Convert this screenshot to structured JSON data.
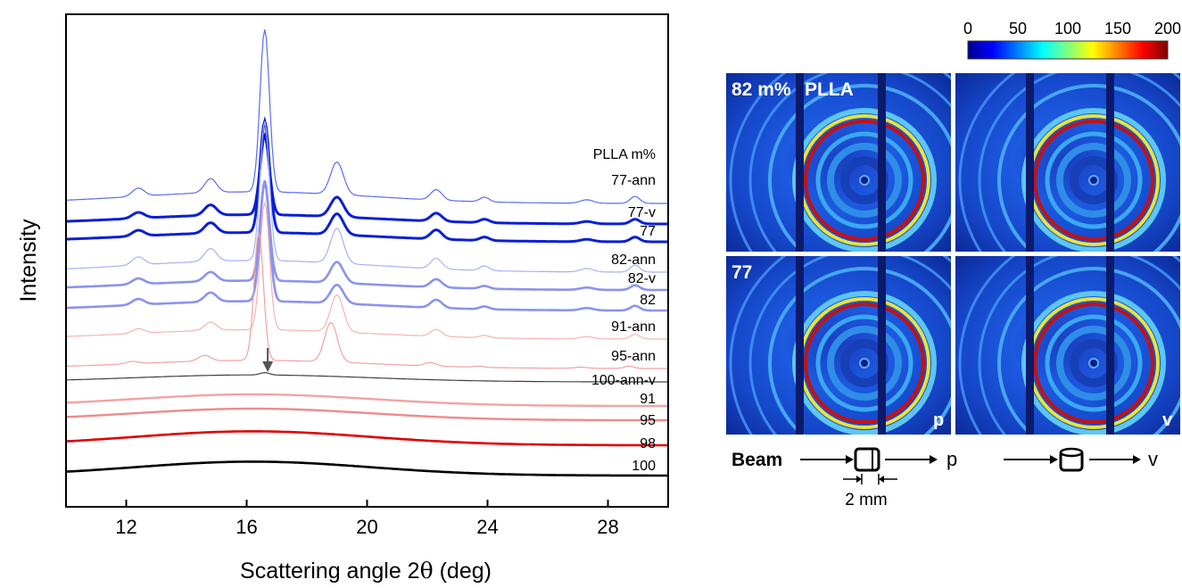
{
  "chart_data": [
    {
      "type": "line",
      "xlabel_prefix": "Scattering angle 2",
      "xlabel_theta": "θ",
      "xlabel_suffix": " (deg)",
      "ylabel": "Intensity",
      "xlim": [
        10,
        30
      ],
      "x_ticks": [
        12,
        16,
        20,
        24,
        28
      ],
      "legend_header": "PLLA m%",
      "grid": false,
      "arrow_at_x": 16.7,
      "peaks": [
        12.4,
        14.8,
        16.6,
        19.0,
        22.3,
        23.9,
        27.3,
        28.9
      ],
      "series": [
        {
          "name": "77-ann",
          "color": "#5a6cf2",
          "heights": [
            0.35,
            0.6,
            7.0,
            1.4,
            0.45,
            0.2,
            0.15,
            0.3
          ],
          "bump": 0.5
        },
        {
          "name": "77-v",
          "color": "#0a1fd6",
          "heights": [
            0.25,
            0.45,
            3.4,
            0.85,
            0.35,
            0.15,
            0.1,
            0.2
          ],
          "bump": 0.4
        },
        {
          "name": "77",
          "color": "#0a1fd6",
          "heights": [
            0.25,
            0.45,
            4.8,
            0.9,
            0.4,
            0.15,
            0.1,
            0.2
          ],
          "bump": 0.4
        },
        {
          "name": "82-ann",
          "color": "#a8b0f5",
          "heights": [
            0.35,
            0.55,
            6.0,
            1.5,
            0.45,
            0.2,
            0.15,
            0.3
          ],
          "bump": 0.5
        },
        {
          "name": "82-v",
          "color": "#8a93ee",
          "heights": [
            0.25,
            0.4,
            4.2,
            0.9,
            0.35,
            0.12,
            0.1,
            0.2
          ],
          "bump": 0.4
        },
        {
          "name": "82",
          "color": "#8a93ee",
          "heights": [
            0.25,
            0.4,
            5.2,
            0.8,
            0.35,
            0.12,
            0.1,
            0.2
          ],
          "bump": 0.4
        },
        {
          "name": "91-ann",
          "color": "#f4b3b3",
          "heights": [
            0.2,
            0.35,
            5.5,
            1.6,
            0.3,
            0.1,
            0.1,
            0.2
          ],
          "bump": 0.4
        },
        {
          "name": "95-ann",
          "color": "#f2a0a0",
          "heights": [
            0.1,
            0.25,
            5.5,
            1.7,
            0.15,
            0.05,
            0.05,
            0.1
          ],
          "bump": 0.35
        },
        {
          "name": "100-ann-v",
          "color": "#404040",
          "heights": [
            0,
            0,
            0.1,
            0,
            0,
            0,
            0,
            0
          ],
          "bump": 0.3
        },
        {
          "name": "91",
          "color": "#f2a3a3",
          "heights": [
            0,
            0,
            0,
            0,
            0,
            0,
            0,
            0
          ],
          "bump": 0.5
        },
        {
          "name": "95",
          "color": "#ee8a8a",
          "heights": [
            0,
            0,
            0,
            0,
            0,
            0,
            0,
            0
          ],
          "bump": 0.5
        },
        {
          "name": "98",
          "color": "#e00000",
          "heights": [
            0,
            0,
            0,
            0,
            0,
            0,
            0,
            0
          ],
          "bump": 0.6
        },
        {
          "name": "100",
          "color": "#000000",
          "heights": [
            0,
            0,
            0,
            0,
            0,
            0,
            0,
            0
          ],
          "bump": 0.6
        }
      ]
    },
    {
      "type": "heatmap",
      "colorbar_ticks": [
        0,
        50,
        100,
        150,
        200
      ],
      "colorbar_range": [
        0,
        200
      ],
      "colormap": "jet",
      "panels": [
        {
          "row_label": "82 m%",
          "title": "PLLA",
          "corner_label": ""
        },
        {
          "row_label": "",
          "title": "",
          "corner_label": ""
        },
        {
          "row_label": "77",
          "title": "",
          "corner_label": "p"
        },
        {
          "row_label": "",
          "title": "",
          "corner_label": "v"
        }
      ]
    }
  ],
  "beam_diagram": {
    "beam_label": "Beam",
    "scale_label": "2 mm",
    "orientation_p": "p",
    "orientation_v": "v"
  }
}
